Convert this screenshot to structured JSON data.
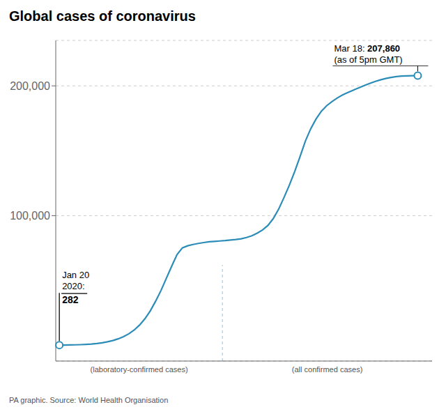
{
  "chart_data": {
    "type": "line",
    "title": "Global cases of coronavirus",
    "source": "PA graphic. Source: World Health Organisation",
    "x": [
      0,
      0.014925,
      0.029851,
      0.044776,
      0.059701,
      0.074627,
      0.089552,
      0.104478,
      0.119403,
      0.134328,
      0.149254,
      0.164179,
      0.179104,
      0.19403,
      0.208955,
      0.223881,
      0.238806,
      0.253731,
      0.268657,
      0.283582,
      0.298507,
      0.313433,
      0.328358,
      0.343284,
      0.358209,
      0.373134,
      0.38806,
      0.402985,
      0.41791,
      0.432836,
      0.447761,
      0.462687,
      0.477612,
      0.492537,
      0.507463,
      0.522388,
      0.537313,
      0.552239,
      0.567164,
      0.58209,
      0.597015,
      0.61194,
      0.626866,
      0.641791,
      0.656716,
      0.671642,
      0.686567,
      0.701493,
      0.716418,
      0.731343,
      0.746269,
      0.761194,
      0.776119,
      0.791045,
      0.80597,
      0.820896,
      0.835821,
      0.850746,
      0.865672,
      0.880597,
      0.895522,
      0.910448,
      0.925373,
      0.940299,
      0.955224,
      0.970149,
      0.985075,
      1
    ],
    "values": [
      282,
      320,
      380,
      480,
      620,
      820,
      1100,
      1500,
      2000,
      2800,
      3800,
      5100,
      6800,
      9000,
      11900,
      15700,
      20600,
      26600,
      34100,
      42300,
      51700,
      61000,
      70000,
      75200,
      76800,
      77800,
      78600,
      79300,
      79900,
      80200,
      80500,
      80800,
      81200,
      81600,
      82200,
      83200,
      84500,
      86500,
      89000,
      92500,
      97800,
      105000,
      114000,
      123500,
      134000,
      145500,
      157500,
      167000,
      174500,
      180500,
      184800,
      188000,
      190800,
      193100,
      195000,
      196800,
      198500,
      200200,
      201800,
      203300,
      204600,
      205700,
      206500,
      207100,
      207500,
      207700,
      207860,
      207860
    ],
    "color": "#2B8CB8",
    "xlim": [
      -0.01,
      1.04
    ],
    "ylim": [
      -12000,
      235000
    ],
    "yticks": [
      {
        "value": 100000,
        "label": "100,000"
      },
      {
        "value": 200000,
        "label": "200,000"
      }
    ],
    "grid": true,
    "tick_labels": "y",
    "annotations": [
      {
        "x": 0,
        "y": 282,
        "text": "Jan 20\n2020:",
        "value_label": "282"
      },
      {
        "x": 1,
        "y": 207860,
        "text": "Mar 18: ",
        "value_label": "207,860",
        "subtext": "(as of 5pm GMT)"
      }
    ],
    "divider": {
      "x": 0.455,
      "y_top": 62000,
      "labels": [
        "(laboratory-confirmed cases)",
        "(all confirmed cases)"
      ]
    }
  }
}
